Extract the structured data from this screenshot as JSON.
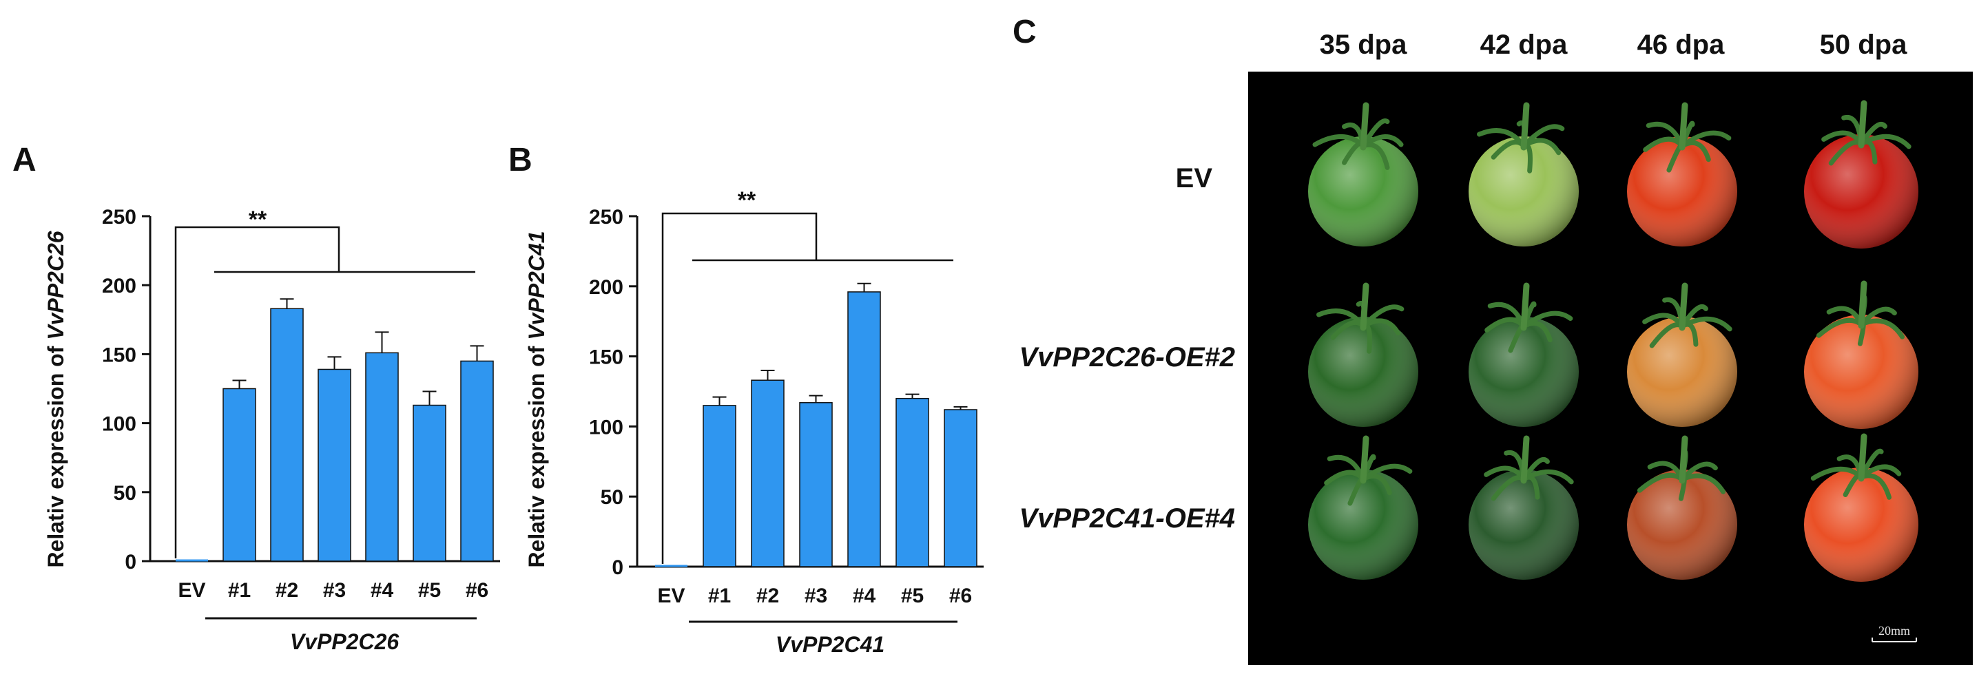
{
  "panels": {
    "a": "A",
    "b": "B",
    "c": "C"
  },
  "chart_data": [
    {
      "type": "bar",
      "panel": "A",
      "ylabel_prefix": "Relativ expression of ",
      "ylabel_gene": "VvPP2C26",
      "categories": [
        "EV",
        "#1",
        "#2",
        "#3",
        "#4",
        "#5",
        "#6"
      ],
      "values": [
        1,
        125,
        183,
        139,
        151,
        113,
        145
      ],
      "errors": [
        0,
        6,
        7,
        9,
        15,
        10,
        11
      ],
      "ylim": [
        0,
        250
      ],
      "yticks": [
        0,
        50,
        100,
        150,
        200,
        250
      ],
      "group_label": "VvPP2C26",
      "significance": "**",
      "bar_color": "#2f96f0"
    },
    {
      "type": "bar",
      "panel": "B",
      "ylabel_prefix": "Relativ expression of ",
      "ylabel_gene": "VvPP2C41",
      "categories": [
        "EV",
        "#1",
        "#2",
        "#3",
        "#4",
        "#5",
        "#6"
      ],
      "values": [
        1,
        115,
        133,
        117,
        196,
        120,
        112
      ],
      "errors": [
        0,
        6,
        7,
        5,
        6,
        3,
        2
      ],
      "ylim": [
        0,
        250
      ],
      "yticks": [
        0,
        50,
        100,
        150,
        200,
        250
      ],
      "group_label": "VvPP2C41",
      "significance": "**",
      "bar_color": "#2f96f0"
    }
  ],
  "photo_panel": {
    "columns": [
      "35 dpa",
      "42 dpa",
      "46 dpa",
      "50 dpa"
    ],
    "rows": [
      {
        "label": "EV",
        "italic": false,
        "fruit_colors": [
          "#4e9a3c",
          "#9bc25a",
          "#e0401c",
          "#c81c14"
        ]
      },
      {
        "label": "VvPP2C26-OE#2",
        "italic": true,
        "fruit_colors": [
          "#2d6b2a",
          "#2f6630",
          "#d98a3a",
          "#ea5a2a"
        ]
      },
      {
        "label": "VvPP2C41-OE#4",
        "italic": true,
        "fruit_colors": [
          "#2d6e2e",
          "#2c5c2f",
          "#b8502a",
          "#ea5026"
        ]
      }
    ],
    "scale_bar": "20mm",
    "background": "#000000"
  }
}
